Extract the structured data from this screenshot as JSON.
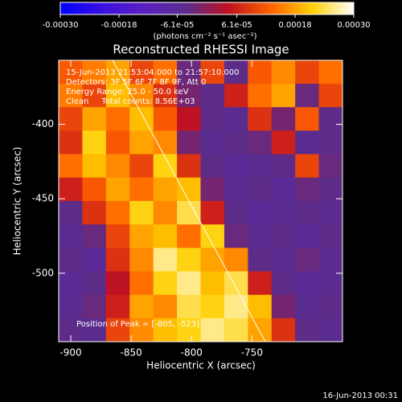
{
  "chart_data": {
    "type": "heatmap",
    "title": "Reconstructed RHESSI Image",
    "x_label": "Heliocentric X (arcsec)",
    "y_label": "Heliocentric Y (arcsec)",
    "colorbar_label": "(photons cm⁻² s⁻¹ asec⁻²)",
    "annotations": [
      "15-Jun-2013 21:53:04.000 to 21:57:10.000",
      "Detectors: 3F 5F 6F 7F 8F 9F, Att 0",
      "Energy Range: 25.0 - 50.0 keV",
      "Clean     Total counts: 8.56E+03"
    ],
    "peak_label": "Position of Peak = [-805, -523]",
    "footer": "16-Jun-2013 00:31",
    "xlim": [
      -910,
      -675
    ],
    "ylim": [
      -546,
      -357
    ],
    "xticks": [
      -900,
      -850,
      -800,
      -750
    ],
    "yticks": [
      -400,
      -450,
      -500
    ],
    "clim": [
      -0.0003,
      0.0003
    ],
    "cticks": [
      {
        "value": -0.0003,
        "label": "-0.00030"
      },
      {
        "value": -0.00018,
        "label": "-0.00018"
      },
      {
        "value": -6.1e-05,
        "label": "-6.1e-05"
      },
      {
        "value": 6.1e-05,
        "label": "6.1e-05"
      },
      {
        "value": 0.00018,
        "label": "0.00018"
      },
      {
        "value": 0.0003,
        "label": "0.00030"
      }
    ],
    "colormap": [
      "#0000ff",
      "#3a10e0",
      "#5a20c0",
      "#5a2d8c",
      "#c01020",
      "#ff6000",
      "#ffd000",
      "#ffffff"
    ],
    "z": [
      [
        0.00012,
        0.00015,
        0.00018,
        0.0001,
        0.00014,
        -3e-05,
        0.0001,
        -4e-05,
        0.00012,
        0.00016,
        0.0001,
        0.00014
      ],
      [
        0.00015,
        0.0001,
        0.0002,
        0.00016,
        8e-05,
        -2e-05,
        -4e-05,
        6e-05,
        0.00014,
        0.00018,
        -3e-05,
        0.0001
      ],
      [
        0.0001,
        0.00018,
        0.00014,
        0.0002,
        0.00012,
        4e-05,
        -4e-05,
        -5e-05,
        8e-05,
        -2e-05,
        0.00012,
        -4e-05
      ],
      [
        8e-05,
        0.00022,
        0.00012,
        0.00018,
        0.00016,
        -2e-05,
        -5e-05,
        -4e-05,
        -3e-05,
        6e-05,
        -5e-05,
        -4e-05
      ],
      [
        0.00014,
        0.0002,
        0.00016,
        0.0001,
        0.00022,
        8e-05,
        -4e-05,
        -6e-05,
        -5e-05,
        -4e-05,
        0.0001,
        -3e-05
      ],
      [
        6e-05,
        0.00012,
        0.00018,
        0.00014,
        0.00018,
        0.0002,
        -2e-05,
        -5e-05,
        -4e-05,
        -6e-05,
        -3e-05,
        -4e-05
      ],
      [
        -4e-05,
        8e-05,
        0.00014,
        0.00022,
        0.00016,
        0.00024,
        6e-05,
        -4e-05,
        -6e-05,
        -5e-05,
        -4e-05,
        -5e-05
      ],
      [
        -5e-05,
        -3e-05,
        0.0001,
        0.00018,
        0.0002,
        0.00014,
        0.00022,
        -3e-05,
        -5e-05,
        -4e-05,
        -6e-05,
        -4e-05
      ],
      [
        -4e-05,
        -6e-05,
        8e-05,
        0.00016,
        0.00026,
        0.00022,
        0.00018,
        0.00016,
        -4e-05,
        -5e-05,
        -3e-05,
        -5e-05
      ],
      [
        -6e-05,
        -4e-05,
        4e-05,
        0.00014,
        0.00022,
        0.00026,
        0.0002,
        0.00024,
        6e-05,
        -4e-05,
        -6e-05,
        -5e-05
      ],
      [
        -5e-05,
        -3e-05,
        6e-05,
        0.00018,
        0.00016,
        0.00024,
        0.00022,
        0.00026,
        0.0002,
        -2e-05,
        -5e-05,
        -4e-05
      ],
      [
        -4e-05,
        -5e-05,
        0.0001,
        0.00016,
        0.0002,
        0.00022,
        0.00026,
        0.00024,
        0.00018,
        8e-05,
        -4e-05,
        -5e-05
      ]
    ]
  }
}
